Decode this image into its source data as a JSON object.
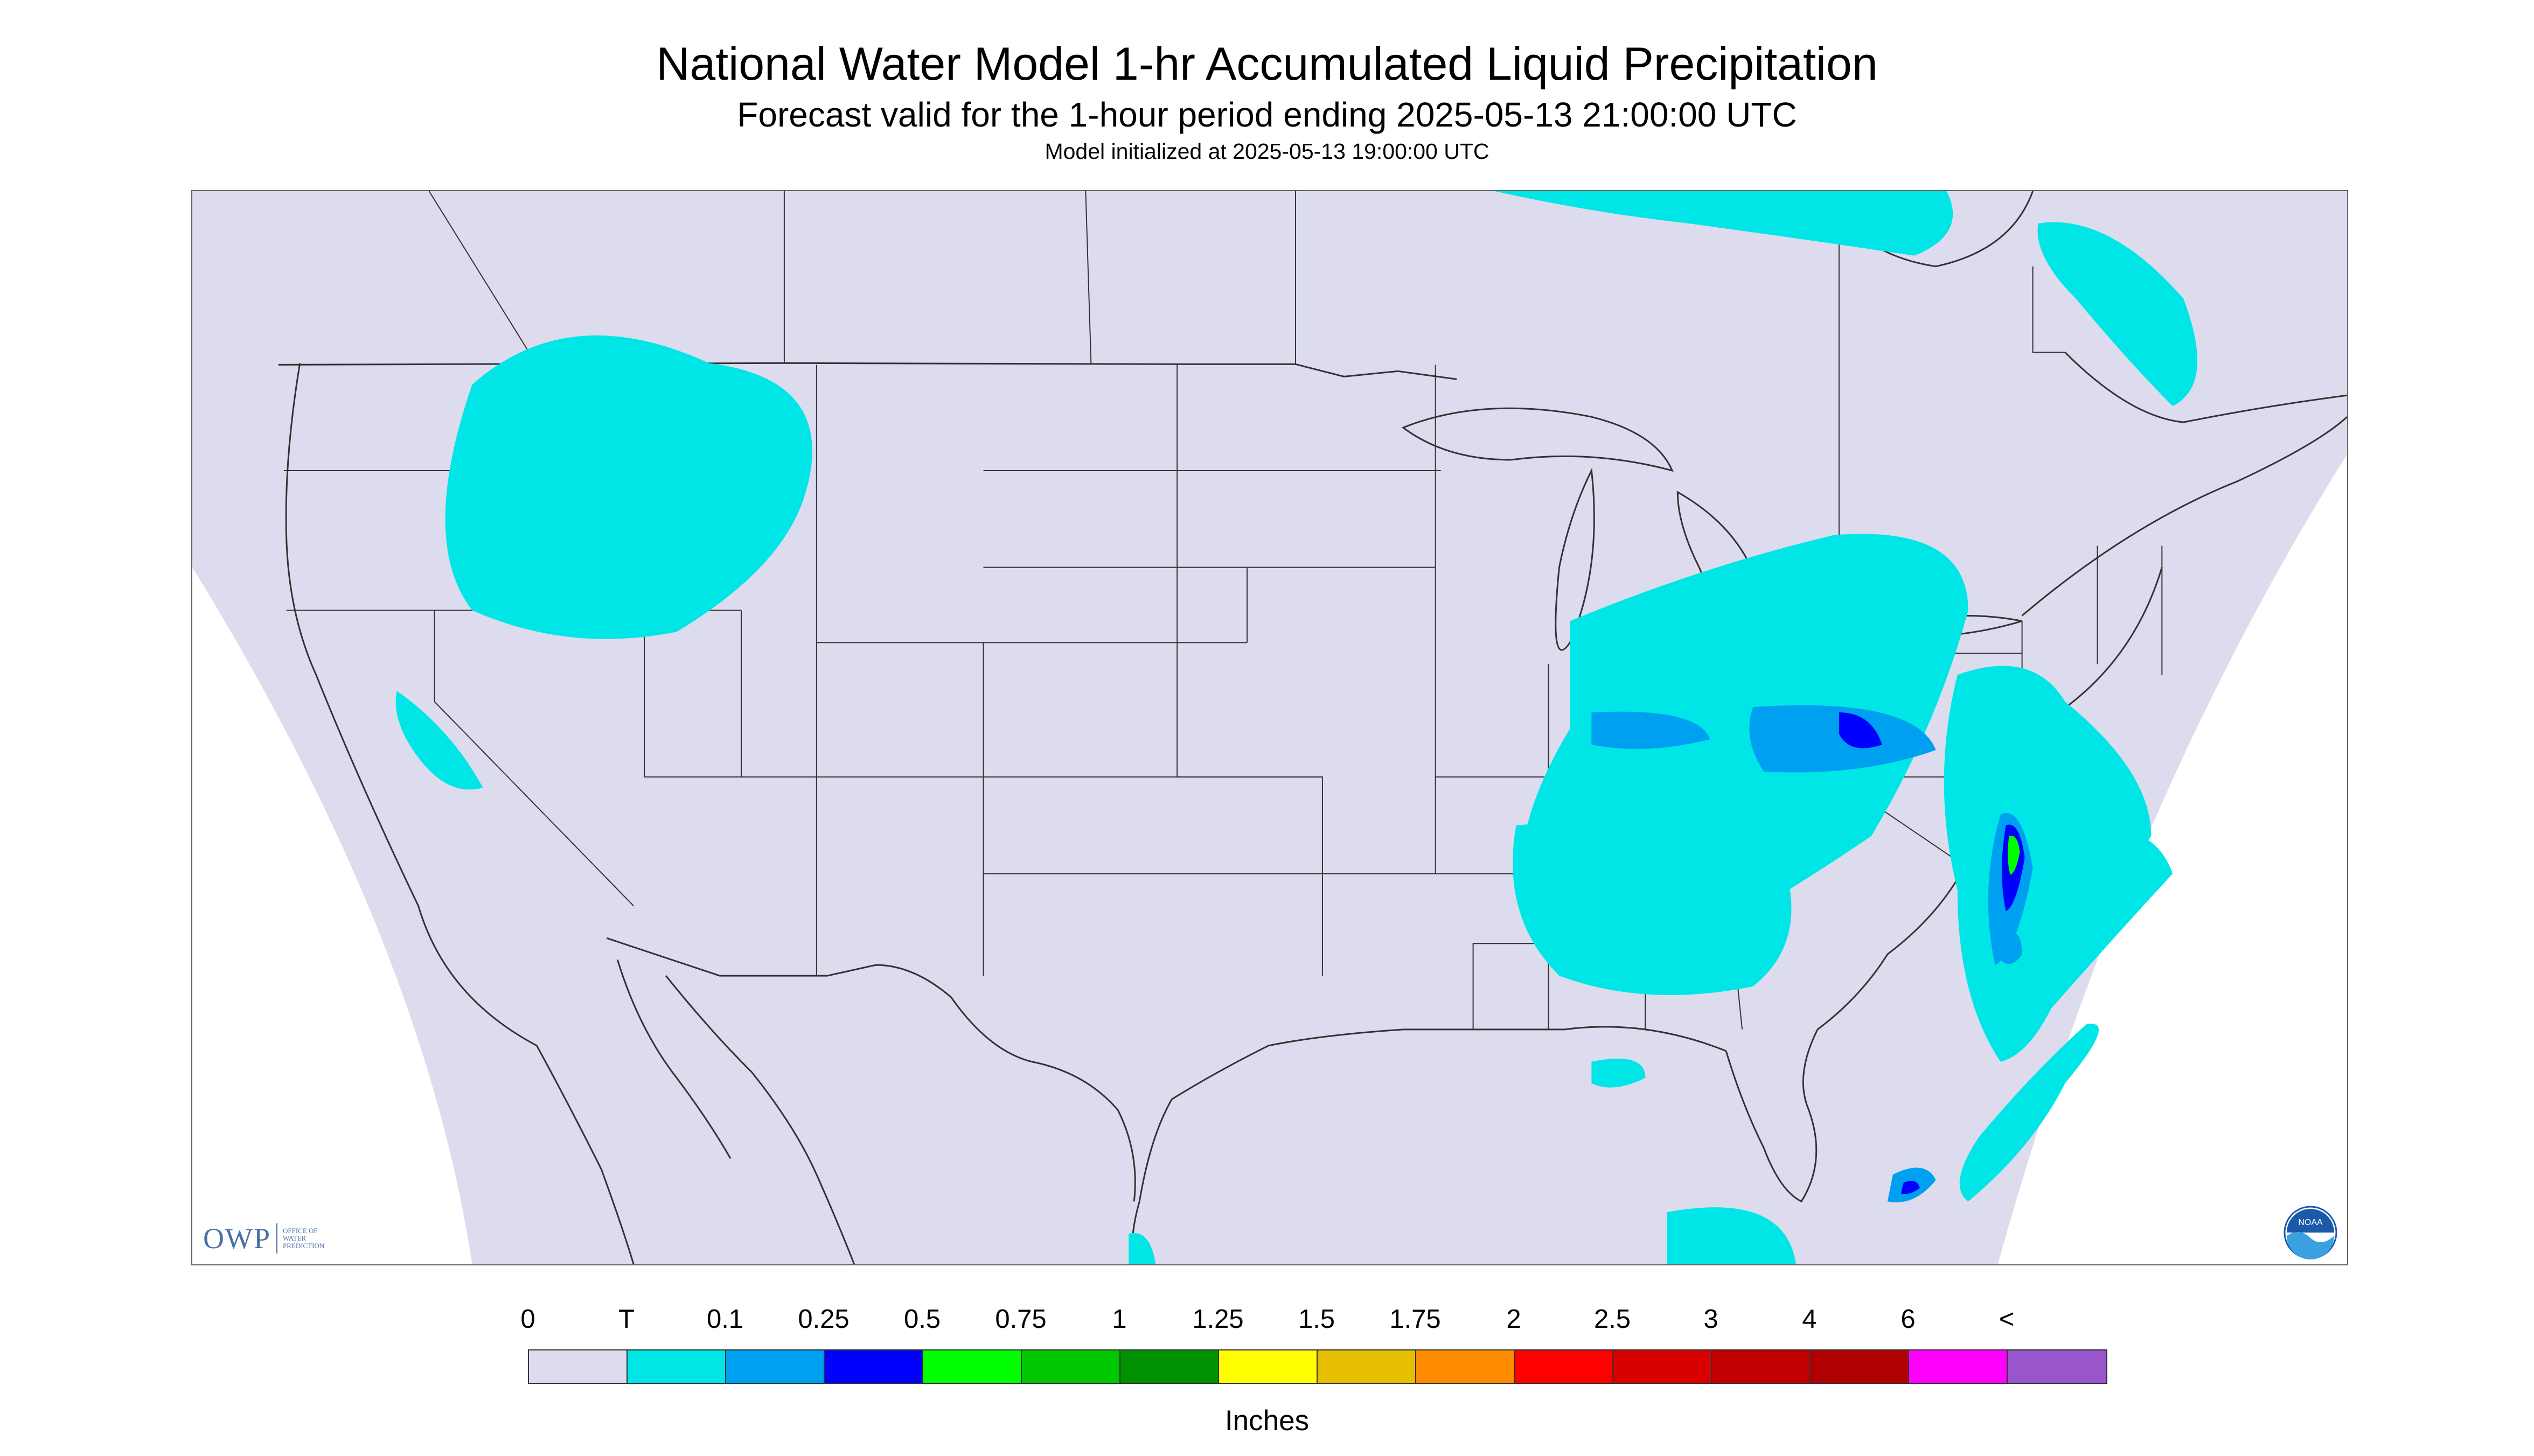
{
  "title": "National Water Model 1-hr Accumulated Liquid Precipitation",
  "subtitle": "Forecast valid for the 1-hour period ending 2025-05-13 21:00:00 UTC",
  "init_text": "Model initialized at 2025-05-13 19:00:00 UTC",
  "logos": {
    "owp": "OWP",
    "owp_subtitle": "OFFICE OF WATER PREDICTION",
    "noaa": "NOAA"
  },
  "colors": {
    "domain_fill": "#dcdcee",
    "outside_fill": "#ffffff",
    "boundaries": "#333333",
    "trace": "#00e6e6",
    "p01": "#00a0f0",
    "p025": "#0000ff",
    "p05": "#00ff00",
    "p075": "#00c800",
    "p1": "#009000"
  },
  "legend": {
    "units": "Inches",
    "labels": [
      "0",
      "T",
      "0.1",
      "0.25",
      "0.5",
      "0.75",
      "1",
      "1.25",
      "1.5",
      "1.75",
      "2",
      "2.5",
      "3",
      "4",
      "6",
      "<"
    ],
    "swatches": [
      "#dcdcee",
      "#00e6e6",
      "#00a0f0",
      "#0000ff",
      "#00ff00",
      "#00c800",
      "#009000",
      "#ffff00",
      "#e6c000",
      "#ff8c00",
      "#ff0000",
      "#d80000",
      "#c00000",
      "#b00000",
      "#ff00ff",
      "#9955cc"
    ]
  }
}
